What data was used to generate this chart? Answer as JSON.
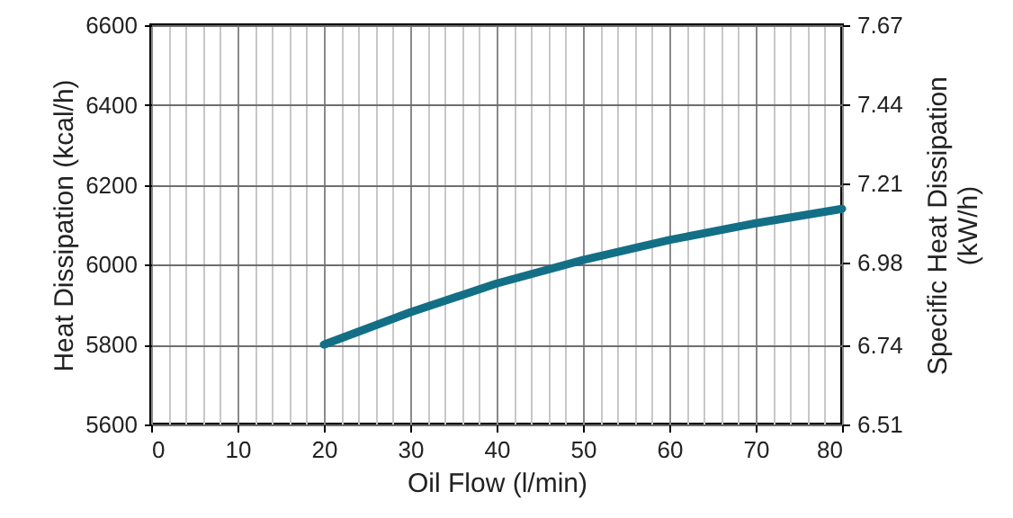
{
  "chart_data": {
    "type": "line",
    "xlabel": "Oil Flow  (l/min)",
    "ylabel": "Heat Dissipation  (kcal/h)",
    "y2label": "Specific Heat Dissipation\n(kW/h)",
    "x": [
      20,
      30,
      40,
      50,
      60,
      70,
      80
    ],
    "series": [
      {
        "color": "#136f86",
        "values": [
          5800,
          5881,
          5953,
          6012,
          6062,
          6104,
          6140
        ]
      }
    ],
    "xlim": [
      0,
      80
    ],
    "xticks": [
      0,
      10,
      20,
      30,
      40,
      50,
      60,
      70,
      80
    ],
    "ylim": [
      5600,
      6600
    ],
    "yticks": [
      5600,
      5800,
      6000,
      6200,
      6400,
      6600
    ],
    "y2lim": [
      6.51,
      7.67
    ],
    "y2ticks": [
      6.51,
      6.74,
      6.98,
      7.21,
      7.44,
      7.67
    ],
    "grid": true,
    "marker": "none",
    "line_style": "solid"
  }
}
